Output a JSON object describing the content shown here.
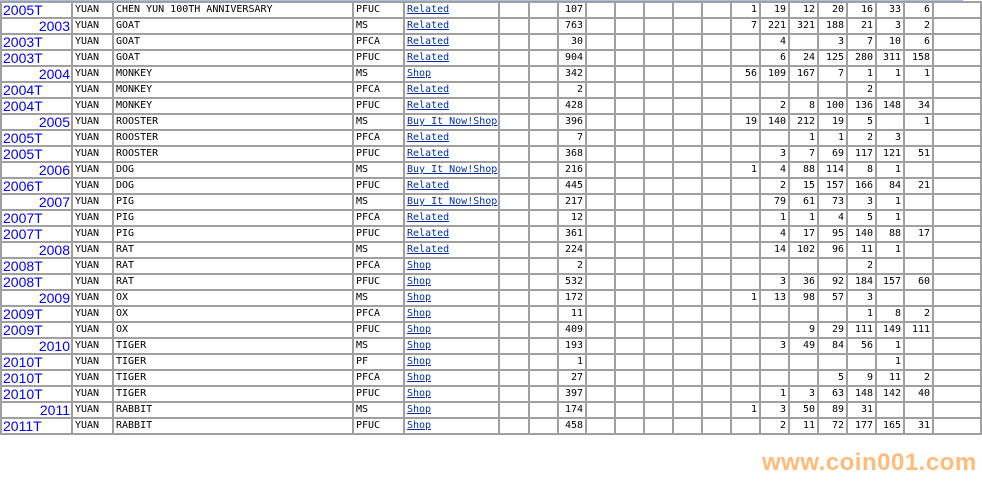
{
  "watermark": "www.coin001.com",
  "rows": [
    {
      "year": "2005T",
      "series": "YUAN",
      "name": "CHEN YUN 100TH ANNIVERSARY",
      "type": "PFUC",
      "link": "Related",
      "total": "107",
      "grades": [
        "1",
        "19",
        "12",
        "20",
        "16",
        "33",
        "6"
      ]
    },
    {
      "year": "2003",
      "series": "YUAN",
      "name": "GOAT",
      "type": "MS",
      "link": "Related",
      "total": "763",
      "grades": [
        "7",
        "221",
        "321",
        "188",
        "21",
        "3",
        "2"
      ]
    },
    {
      "year": "2003T",
      "series": "YUAN",
      "name": "GOAT",
      "type": "PFCA",
      "link": "Related",
      "total": "30",
      "grades": [
        "",
        "4",
        "",
        "3",
        "7",
        "10",
        "6"
      ]
    },
    {
      "year": "2003T",
      "series": "YUAN",
      "name": "GOAT",
      "type": "PFUC",
      "link": "Related",
      "total": "904",
      "grades": [
        "",
        "6",
        "24",
        "125",
        "280",
        "311",
        "158"
      ]
    },
    {
      "year": "2004",
      "series": "YUAN",
      "name": "MONKEY",
      "type": "MS",
      "link": "Shop",
      "total": "342",
      "grades": [
        "56",
        "109",
        "167",
        "7",
        "1",
        "1",
        "1"
      ]
    },
    {
      "year": "2004T",
      "series": "YUAN",
      "name": "MONKEY",
      "type": "PFCA",
      "link": "Related",
      "total": "2",
      "grades": [
        "",
        "",
        "",
        "",
        "2",
        "",
        ""
      ]
    },
    {
      "year": "2004T",
      "series": "YUAN",
      "name": "MONKEY",
      "type": "PFUC",
      "link": "Related",
      "total": "428",
      "grades": [
        "",
        "2",
        "8",
        "100",
        "136",
        "148",
        "34"
      ]
    },
    {
      "year": "2005",
      "series": "YUAN",
      "name": "ROOSTER",
      "type": "MS",
      "link": "Buy It Now!Shop",
      "total": "396",
      "grades": [
        "19",
        "140",
        "212",
        "19",
        "5",
        "",
        "1"
      ]
    },
    {
      "year": "2005T",
      "series": "YUAN",
      "name": "ROOSTER",
      "type": "PFCA",
      "link": "Related",
      "total": "7",
      "grades": [
        "",
        "",
        "1",
        "1",
        "2",
        "3",
        ""
      ]
    },
    {
      "year": "2005T",
      "series": "YUAN",
      "name": "ROOSTER",
      "type": "PFUC",
      "link": "Related",
      "total": "368",
      "grades": [
        "",
        "3",
        "7",
        "69",
        "117",
        "121",
        "51"
      ]
    },
    {
      "year": "2006",
      "series": "YUAN",
      "name": "DOG",
      "type": "MS",
      "link": "Buy It Now!Shop",
      "total": "216",
      "grades": [
        "1",
        "4",
        "88",
        "114",
        "8",
        "1",
        ""
      ]
    },
    {
      "year": "2006T",
      "series": "YUAN",
      "name": "DOG",
      "type": "PFUC",
      "link": "Related",
      "total": "445",
      "grades": [
        "",
        "2",
        "15",
        "157",
        "166",
        "84",
        "21"
      ]
    },
    {
      "year": "2007",
      "series": "YUAN",
      "name": "PIG",
      "type": "MS",
      "link": "Buy It Now!Shop",
      "total": "217",
      "grades": [
        "",
        "79",
        "61",
        "73",
        "3",
        "1",
        ""
      ]
    },
    {
      "year": "2007T",
      "series": "YUAN",
      "name": "PIG",
      "type": "PFCA",
      "link": "Related",
      "total": "12",
      "grades": [
        "",
        "1",
        "1",
        "4",
        "5",
        "1",
        ""
      ]
    },
    {
      "year": "2007T",
      "series": "YUAN",
      "name": "PIG",
      "type": "PFUC",
      "link": "Related",
      "total": "361",
      "grades": [
        "",
        "4",
        "17",
        "95",
        "140",
        "88",
        "17"
      ]
    },
    {
      "year": "2008",
      "series": "YUAN",
      "name": "RAT",
      "type": "MS",
      "link": "Related",
      "total": "224",
      "grades": [
        "",
        "14",
        "102",
        "96",
        "11",
        "1",
        ""
      ]
    },
    {
      "year": "2008T",
      "series": "YUAN",
      "name": "RAT",
      "type": "PFCA",
      "link": "Shop",
      "total": "2",
      "grades": [
        "",
        "",
        "",
        "",
        "2",
        "",
        ""
      ]
    },
    {
      "year": "2008T",
      "series": "YUAN",
      "name": "RAT",
      "type": "PFUC",
      "link": "Shop",
      "total": "532",
      "grades": [
        "",
        "3",
        "36",
        "92",
        "184",
        "157",
        "60"
      ]
    },
    {
      "year": "2009",
      "series": "YUAN",
      "name": "OX",
      "type": "MS",
      "link": "Shop",
      "total": "172",
      "grades": [
        "1",
        "13",
        "98",
        "57",
        "3",
        "",
        ""
      ]
    },
    {
      "year": "2009T",
      "series": "YUAN",
      "name": "OX",
      "type": "PFCA",
      "link": "Shop",
      "total": "11",
      "grades": [
        "",
        "",
        "",
        "",
        "1",
        "8",
        "2"
      ]
    },
    {
      "year": "2009T",
      "series": "YUAN",
      "name": "OX",
      "type": "PFUC",
      "link": "Shop",
      "total": "409",
      "grades": [
        "",
        "",
        "9",
        "29",
        "111",
        "149",
        "111"
      ]
    },
    {
      "year": "2010",
      "series": "YUAN",
      "name": "TIGER",
      "type": "MS",
      "link": "Shop",
      "total": "193",
      "grades": [
        "",
        "3",
        "49",
        "84",
        "56",
        "1",
        ""
      ]
    },
    {
      "year": "2010T",
      "series": "YUAN",
      "name": "TIGER",
      "type": "PF",
      "link": "Shop",
      "total": "1",
      "grades": [
        "",
        "",
        "",
        "",
        "",
        "1",
        ""
      ]
    },
    {
      "year": "2010T",
      "series": "YUAN",
      "name": "TIGER",
      "type": "PFCA",
      "link": "Shop",
      "total": "27",
      "grades": [
        "",
        "",
        "",
        "5",
        "9",
        "11",
        "2"
      ]
    },
    {
      "year": "2010T",
      "series": "YUAN",
      "name": "TIGER",
      "type": "PFUC",
      "link": "Shop",
      "total": "397",
      "grades": [
        "",
        "1",
        "3",
        "63",
        "148",
        "142",
        "40"
      ]
    },
    {
      "year": "2011",
      "series": "YUAN",
      "name": "RABBIT",
      "type": "MS",
      "link": "Shop",
      "total": "174",
      "grades": [
        "1",
        "3",
        "50",
        "89",
        "31",
        "",
        ""
      ]
    },
    {
      "year": "2011T",
      "series": "YUAN",
      "name": "RABBIT",
      "type": "PFUC",
      "link": "Shop",
      "total": "458",
      "grades": [
        "",
        "2",
        "11",
        "72",
        "177",
        "165",
        "31"
      ]
    }
  ]
}
